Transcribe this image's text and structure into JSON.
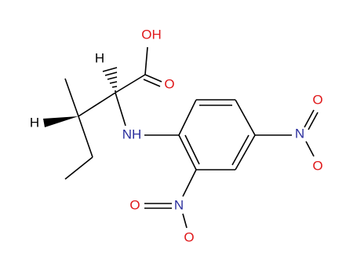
{
  "atoms": [
    {
      "label": "OH"
    },
    {
      "label": "O"
    },
    {
      "label": "H"
    },
    {
      "label": "H"
    },
    {
      "label": "NH"
    },
    {
      "label": "N"
    },
    {
      "label": "O"
    },
    {
      "label": "O"
    },
    {
      "label": "N"
    },
    {
      "label": "O"
    },
    {
      "label": "O"
    }
  ]
}
